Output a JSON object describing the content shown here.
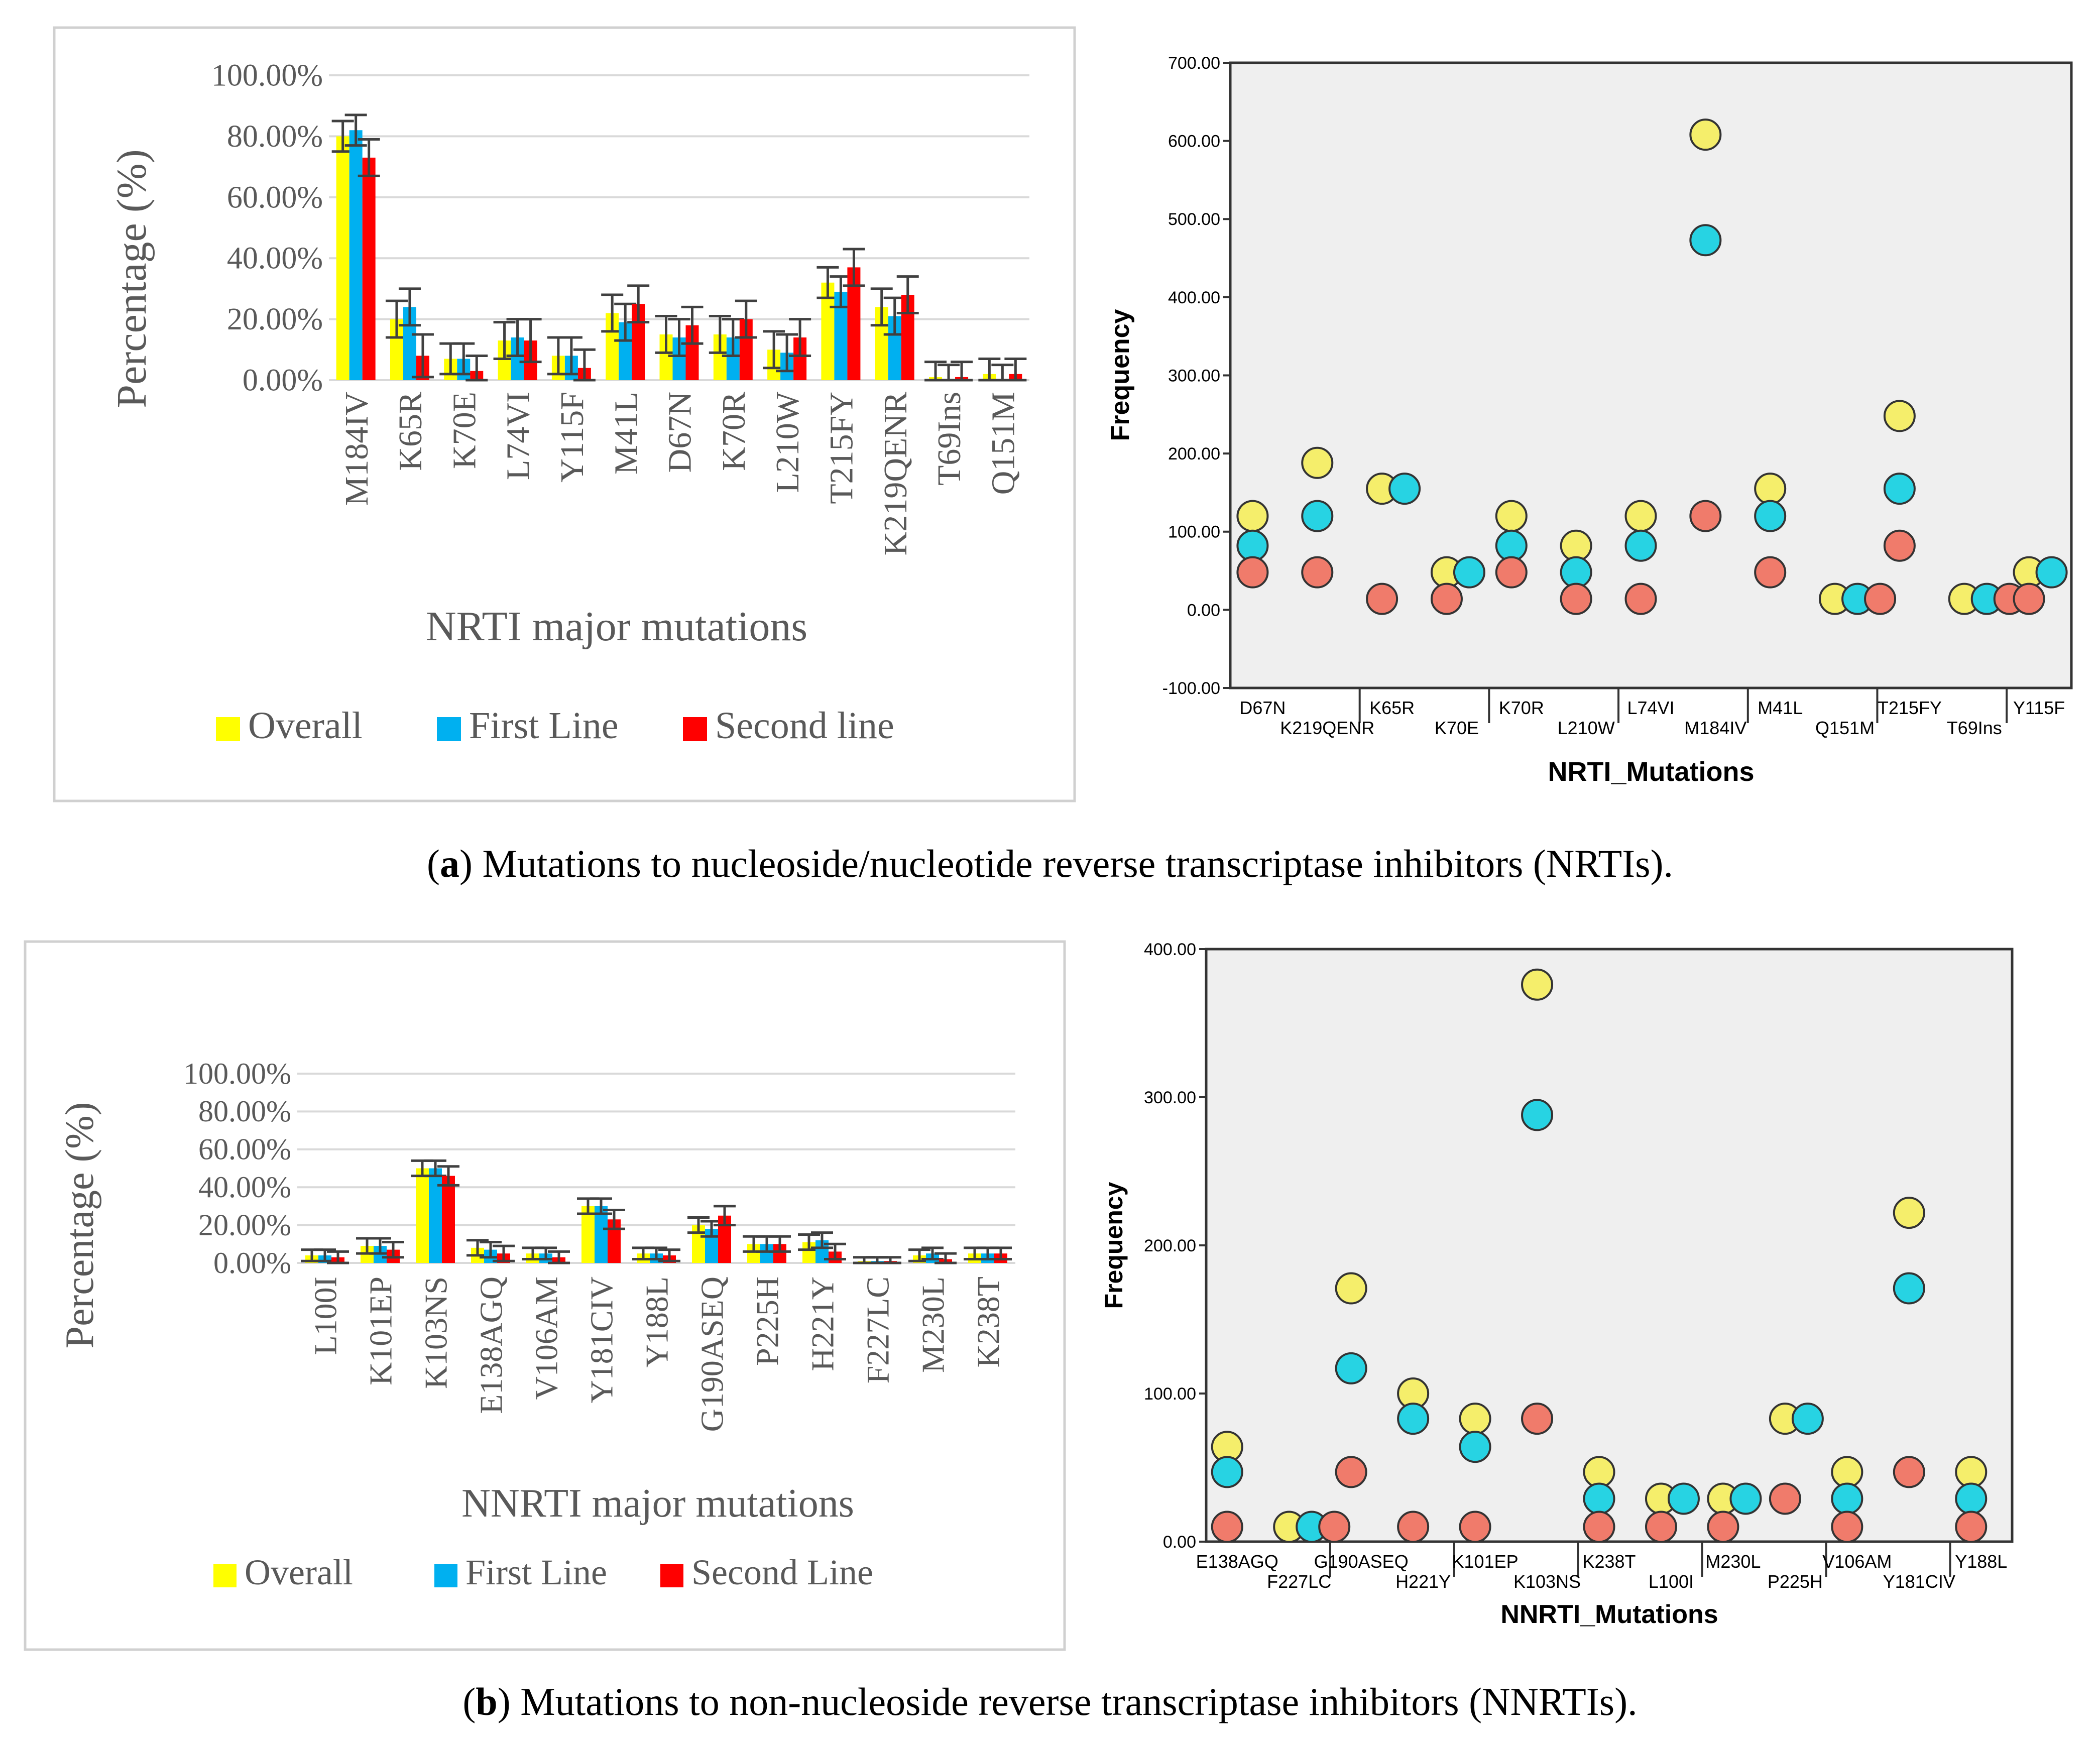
{
  "figure": {
    "caption_a": {
      "letter": "a",
      "open": "(",
      "close": ") ",
      "text": "Mutations to nucleoside/nucleotide reverse transcriptase inhibitors (NRTIs)."
    },
    "caption_b": {
      "letter": "b",
      "open": "(",
      "close": ") ",
      "text": "Mutations to non-nucleoside reverse transcriptase inhibitors (NNRTIs)."
    }
  },
  "colors": {
    "overall": "#ffff00",
    "first": "#00b0f0",
    "second": "#ff0000",
    "overall_dot": "#f5ee6b",
    "first_dot": "#27d3e3",
    "second_dot": "#f07b6b",
    "grid": "#d9d9d9",
    "plot_bg": "#efefef"
  },
  "chart_data": [
    {
      "id": "bar_a",
      "type": "bar",
      "title": "",
      "xlabel": "NRTI major mutations",
      "ylabel": "Percentage (%)",
      "ylim": [
        0,
        100
      ],
      "yticks": [
        "0.00%",
        "20.00%",
        "40.00%",
        "60.00%",
        "80.00%",
        "100.00%"
      ],
      "categories": [
        "M184IV",
        "K65R",
        "K70E",
        "L74VI",
        "Y115F",
        "M41L",
        "D67N",
        "K70R",
        "L210W",
        "T215FY",
        "K219QENR",
        "T69Ins",
        "Q151M"
      ],
      "series": [
        {
          "name": "Overall",
          "values": [
            80,
            20,
            7,
            13,
            8,
            22,
            15,
            15,
            10,
            32,
            24,
            1,
            2
          ],
          "errors": [
            5,
            6,
            5,
            6,
            6,
            6,
            6,
            6,
            6,
            5,
            6,
            5,
            5
          ]
        },
        {
          "name": "First Line",
          "values": [
            82,
            24,
            7,
            14,
            8,
            19,
            14,
            14,
            9,
            29,
            21,
            0,
            0
          ],
          "errors": [
            5,
            6,
            5,
            6,
            6,
            6,
            6,
            6,
            6,
            5,
            6,
            5,
            5
          ]
        },
        {
          "name": "Second line",
          "values": [
            73,
            8,
            3,
            13,
            4,
            25,
            18,
            20,
            14,
            37,
            28,
            1,
            2
          ],
          "errors": [
            6,
            7,
            5,
            7,
            6,
            6,
            6,
            6,
            6,
            6,
            6,
            5,
            5
          ]
        }
      ],
      "legend": "bottom"
    },
    {
      "id": "scatter_a",
      "type": "scatter",
      "title": "",
      "xlabel": "NRTI_Mutations",
      "ylabel": "Frequency",
      "ylim": [
        -100,
        700
      ],
      "yticks": [
        "-100.00",
        "0.00",
        "100.00",
        "200.00",
        "300.00",
        "400.00",
        "500.00",
        "600.00",
        "700.00"
      ],
      "categories": [
        "D67N",
        "K219QENR",
        "K65R",
        "K70E",
        "K70R",
        "L210W",
        "L74VI",
        "M184IV",
        "M41L",
        "Q151M",
        "T215FY",
        "T69Ins",
        "Y115F"
      ],
      "series": [
        {
          "name": "Overall",
          "values": [
            120,
            188,
            155,
            48,
            120,
            82,
            120,
            608,
            155,
            14,
            248,
            14,
            48
          ]
        },
        {
          "name": "First Line",
          "values": [
            82,
            120,
            155,
            48,
            82,
            48,
            82,
            473,
            120,
            14,
            155,
            14,
            48
          ]
        },
        {
          "name": "Second line",
          "values": [
            48,
            48,
            14,
            14,
            48,
            14,
            14,
            120,
            48,
            14,
            82,
            14,
            14
          ]
        }
      ]
    },
    {
      "id": "bar_b",
      "type": "bar",
      "title": "",
      "xlabel": "NNRTI major mutations",
      "ylabel": "Percentage (%)",
      "ylim": [
        0,
        100
      ],
      "yticks": [
        "0.00%",
        "20.00%",
        "40.00%",
        "60.00%",
        "80.00%",
        "100.00%"
      ],
      "categories": [
        "L100I",
        "K101EP",
        "K103NS",
        "E138AGQ",
        "V106AM",
        "Y181CIV",
        "Y188L",
        "G190ASEQ",
        "P225H",
        "H221Y",
        "F227LC",
        "M230L",
        "K238T"
      ],
      "series": [
        {
          "name": "Overall",
          "values": [
            4,
            9,
            50,
            8,
            5,
            30,
            5,
            20,
            10,
            11,
            1,
            4,
            5
          ],
          "errors": [
            3,
            4,
            4,
            4,
            3,
            4,
            3,
            4,
            4,
            4,
            2,
            3,
            3
          ]
        },
        {
          "name": "First Line",
          "values": [
            4,
            9,
            50,
            7,
            5,
            30,
            5,
            18,
            10,
            12,
            1,
            5,
            5
          ],
          "errors": [
            3,
            4,
            4,
            4,
            3,
            4,
            3,
            4,
            4,
            4,
            2,
            3,
            3
          ]
        },
        {
          "name": "Second Line",
          "values": [
            3,
            7,
            46,
            5,
            3,
            23,
            4,
            25,
            10,
            6,
            1,
            2,
            5
          ],
          "errors": [
            3,
            4,
            5,
            4,
            3,
            5,
            3,
            5,
            4,
            4,
            2,
            3,
            3
          ]
        }
      ],
      "legend": "bottom"
    },
    {
      "id": "scatter_b",
      "type": "scatter",
      "title": "",
      "xlabel": "NNRTI_Mutations",
      "ylabel": "Frequency",
      "ylim": [
        0,
        400
      ],
      "yticks": [
        "0.00",
        "100.00",
        "200.00",
        "300.00",
        "400.00"
      ],
      "categories": [
        "E138AGQ",
        "F227LC",
        "G190ASEQ",
        "H221Y",
        "K101EP",
        "K103NS",
        "K238T",
        "L100I",
        "M230L",
        "P225H",
        "V106AM",
        "Y181CIV",
        "Y188L"
      ],
      "series": [
        {
          "name": "Overall",
          "values": [
            64,
            10,
            171,
            100,
            83,
            376,
            47,
            29,
            29,
            83,
            47,
            222,
            47
          ]
        },
        {
          "name": "First Line",
          "values": [
            47,
            10,
            117,
            83,
            64,
            288,
            29,
            29,
            29,
            83,
            29,
            171,
            29
          ]
        },
        {
          "name": "Second Line",
          "values": [
            10,
            10,
            47,
            10,
            10,
            83,
            10,
            10,
            10,
            29,
            10,
            47,
            10
          ]
        }
      ]
    }
  ]
}
